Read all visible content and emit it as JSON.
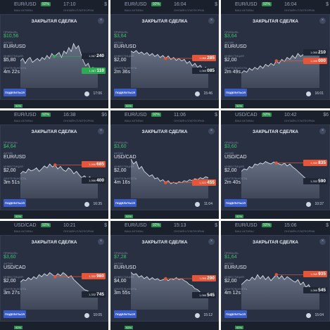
{
  "common": {
    "title": "ЗАКРЫТАЯ СДЕЛКА",
    "profit_label": "ПРИБЫЛЬ",
    "asset_label": "АКТИВ",
    "invest_label": "ИНВЕСТИЦИЯ",
    "duration_label": "ДЛИТЕЛЬНОСТЬ",
    "share_label": "ПОДЕЛИТЬСЯ",
    "badge": "92%",
    "top_sub": "ВАШ АКТИВЫ",
    "top_sub2": "ОНЛАЙН-ПЛАТФОРМА"
  },
  "colors": {
    "profit": "#3fc36b",
    "open_tag": "#e4553a",
    "close_tag": "#2faa55",
    "bg": "#1e2533",
    "share": "#3a5cc8"
  },
  "tiles": [
    {
      "pair": "EUR/USD",
      "top_time": "17:10",
      "dollar": "$",
      "profit": "$10,56",
      "asset": "EUR/USD",
      "invest": "$5,80",
      "duration": "4m 22s",
      "time": "17:06",
      "open_pre": "1,067",
      "open_val": "240",
      "close_pre": "1,067",
      "close_val": "110",
      "close_style": "green",
      "series": [
        0.55,
        0.6,
        0.5,
        0.58,
        0.62,
        0.52,
        0.56,
        0.6,
        0.55,
        0.62,
        0.58,
        0.66,
        0.6,
        0.7,
        0.64,
        0.68,
        0.72,
        0.62,
        0.75,
        0.7,
        0.82,
        0.74,
        0.9,
        0.8,
        0.86,
        0.7,
        0.55,
        0.45,
        0.5,
        0.38,
        0.42,
        0.3,
        0.35
      ]
    },
    {
      "pair": "EUR/USD",
      "top_time": "16:04",
      "dollar": "$",
      "profit": "$3,64",
      "asset": "EUR/USD",
      "invest": "$2,00",
      "duration": "2m 36s",
      "time": "15:46",
      "open_pre": "1,065",
      "open_val": "285",
      "close_pre": "1,065",
      "close_val": "085",
      "close_style": "white",
      "series": [
        0.75,
        0.72,
        0.76,
        0.7,
        0.73,
        0.68,
        0.72,
        0.66,
        0.7,
        0.64,
        0.68,
        0.62,
        0.66,
        0.6,
        0.65,
        0.58,
        0.62,
        0.56,
        0.6,
        0.55,
        0.58,
        0.5,
        0.54,
        0.45,
        0.5,
        0.42,
        0.46,
        0.38,
        0.42,
        0.35
      ]
    },
    {
      "pair": "EUR/USD",
      "top_time": "16:04",
      "dollar": "$",
      "profit": "$3,64",
      "asset": "EUR/USD",
      "invest": "$2,00",
      "duration": "2m 49s",
      "time": "16:01",
      "open_pre": "1,065",
      "open_val": "000",
      "close_pre": "1,065",
      "close_val": "210",
      "close_style": "white",
      "series": [
        0.3,
        0.35,
        0.32,
        0.4,
        0.36,
        0.42,
        0.38,
        0.45,
        0.4,
        0.48,
        0.44,
        0.5,
        0.46,
        0.55,
        0.5,
        0.58,
        0.54,
        0.62,
        0.58,
        0.66,
        0.6,
        0.7,
        0.64,
        0.68,
        0.72,
        0.68,
        0.75,
        0.7,
        0.78,
        0.72
      ]
    },
    {
      "pair": "EUR/USD",
      "top_time": "16:38",
      "dollar": "$6",
      "profit": "$4,64",
      "asset": "EUR/USD",
      "invest": "$2,00",
      "duration": "3m 51s",
      "time": "16:35",
      "open_pre": "1,066",
      "open_val": "685",
      "close_pre": "1,066",
      "close_val": "400",
      "close_style": "white",
      "series": [
        0.5,
        0.55,
        0.52,
        0.6,
        0.56,
        0.58,
        0.62,
        0.55,
        0.6,
        0.66,
        0.62,
        0.7,
        0.64,
        0.68,
        0.6,
        0.65,
        0.58,
        0.55,
        0.62,
        0.58,
        0.5,
        0.55,
        0.48,
        0.42,
        0.46,
        0.4,
        0.44,
        0.38,
        0.4,
        0.36
      ]
    },
    {
      "pair": "EUR/USD",
      "top_time": "11:06",
      "dollar": "$",
      "profit": "$3,60",
      "asset": "USD/CAD",
      "invest": "$2,00",
      "duration": "4m 16s",
      "time": "11:04",
      "open_pre": "1,322",
      "open_val": "455",
      "close_pre": "",
      "close_val": "",
      "close_style": "none",
      "series": [
        0.8,
        0.7,
        0.75,
        0.6,
        0.65,
        0.55,
        0.5,
        0.45,
        0.48,
        0.4,
        0.42,
        0.35,
        0.38,
        0.32,
        0.36,
        0.3,
        0.33,
        0.3,
        0.34,
        0.32,
        0.36,
        0.34,
        0.38,
        0.36,
        0.4,
        0.38,
        0.42,
        0.4,
        0.44,
        0.42
      ]
    },
    {
      "pair": "USD/CAD",
      "top_time": "10:42",
      "dollar": "$6",
      "profit": "$3,60",
      "asset": "USD/CAD",
      "invest": "$2,00",
      "duration": "2m 40s",
      "time": "10:37",
      "open_pre": "1,332",
      "open_val": "835",
      "close_pre": "1,332",
      "close_val": "590",
      "close_style": "white",
      "series": [
        0.55,
        0.6,
        0.58,
        0.65,
        0.62,
        0.7,
        0.68,
        0.72,
        0.7,
        0.75,
        0.72,
        0.7,
        0.74,
        0.72,
        0.7,
        0.68,
        0.72,
        0.66,
        0.7,
        0.64,
        0.6,
        0.55,
        0.5,
        0.45,
        0.4,
        0.38,
        0.35,
        0.36,
        0.34,
        0.35
      ]
    },
    {
      "pair": "USD/CAD",
      "top_time": "10:21",
      "dollar": "$",
      "profit": "$3,60",
      "asset": "USD/CAD",
      "invest": "$2,00",
      "duration": "3m 27s",
      "time": "10:05",
      "open_pre": "1,332",
      "open_val": "980",
      "close_pre": "1,332",
      "close_val": "745",
      "close_style": "white",
      "series": [
        0.55,
        0.6,
        0.58,
        0.64,
        0.6,
        0.66,
        0.62,
        0.7,
        0.66,
        0.72,
        0.68,
        0.74,
        0.7,
        0.66,
        0.72,
        0.68,
        0.74,
        0.7,
        0.64,
        0.68,
        0.6,
        0.55,
        0.5,
        0.45,
        0.4,
        0.38,
        0.35,
        0.32,
        0.34,
        0.3
      ]
    },
    {
      "pair": "EUR/USD",
      "top_time": "15:13",
      "dollar": "$",
      "profit": "$7,28",
      "asset": "EUR/USD",
      "invest": "$4,00",
      "duration": "3m 55s",
      "time": "15:12",
      "open_pre": "1,066",
      "open_val": "290",
      "close_pre": "1,066",
      "close_val": "545",
      "close_style": "white",
      "series": [
        0.75,
        0.7,
        0.72,
        0.65,
        0.68,
        0.62,
        0.66,
        0.6,
        0.64,
        0.6,
        0.62,
        0.58,
        0.6,
        0.62,
        0.58,
        0.62,
        0.6,
        0.64,
        0.6,
        0.62,
        0.58,
        0.55,
        0.5,
        0.48,
        0.42,
        0.4,
        0.35,
        0.32,
        0.3,
        0.28
      ]
    },
    {
      "pair": "EUR/USD",
      "top_time": "15:06",
      "dollar": "$",
      "profit": "$1,64",
      "asset": "EUR/USD",
      "invest": "$2,00",
      "duration": "4m 12s",
      "time": "15:04",
      "open_pre": "1,066",
      "open_val": "935",
      "close_pre": "1,066",
      "close_val": "545",
      "close_style": "white",
      "series": [
        0.5,
        0.55,
        0.6,
        0.58,
        0.65,
        0.6,
        0.7,
        0.62,
        0.68,
        0.6,
        0.66,
        0.58,
        0.64,
        0.7,
        0.62,
        0.68,
        0.6,
        0.66,
        0.62,
        0.58,
        0.55,
        0.6,
        0.5,
        0.55,
        0.45,
        0.5,
        0.4,
        0.42,
        0.36,
        0.38
      ]
    }
  ]
}
